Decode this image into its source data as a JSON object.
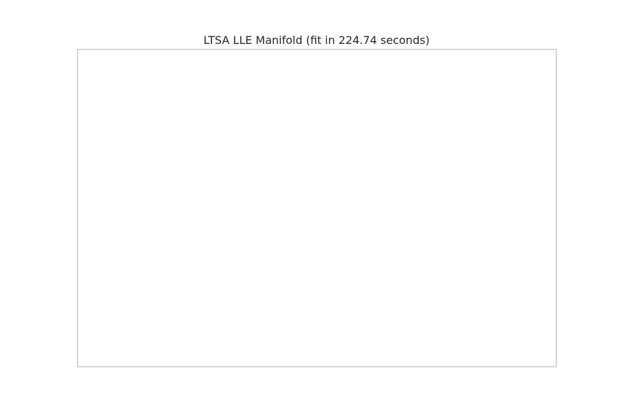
{
  "chart_data": {
    "type": "scatter",
    "title": "LTSA LLE Manifold (fit in 224.74 seconds)",
    "xlabel": "",
    "ylabel": "",
    "grid": true,
    "tick_labels_visible": false,
    "x_gridlines": [
      1,
      2,
      3,
      4,
      5
    ],
    "y_gridlines": [
      1,
      2,
      3,
      4,
      5
    ],
    "xlim": [
      0.25,
      5.75
    ],
    "ylim": [
      0.25,
      5.75
    ],
    "series": []
  },
  "colors": {
    "grid": "#cccccc",
    "frame": "#cccccc",
    "background": "#ffffff",
    "title": "#262626"
  }
}
